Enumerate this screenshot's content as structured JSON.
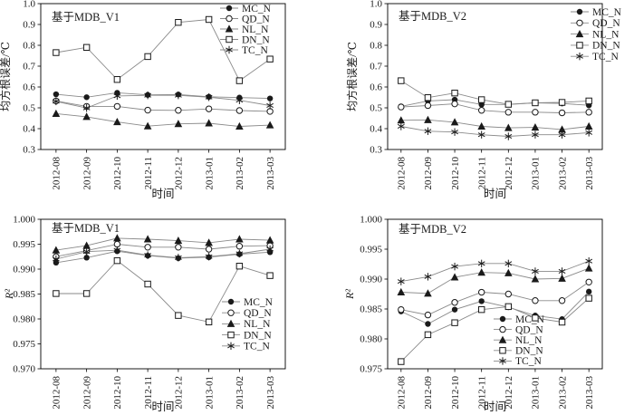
{
  "figure_title": "",
  "colors": {
    "line": "#8a8a8a",
    "marker": "#1a1a1a",
    "frame": "#000000",
    "text": "#1a1a1a",
    "background": "#ffffff"
  },
  "chart_data": [
    {
      "id": "rmse-mdb-v1",
      "type": "line",
      "title": "基于MDB_V1",
      "ylabel": "均方根误差/℃",
      "xlabel": "时间",
      "ylim": [
        0.3,
        1.0
      ],
      "ytick_labels": [
        "0.3",
        "0.4",
        "0.5",
        "0.6",
        "0.7",
        "0.8",
        "0.9",
        "1.0"
      ],
      "grid": false,
      "legend_position": "upper-right",
      "categories": [
        "2012-08",
        "2012-09",
        "2012-10",
        "2012-11",
        "2012-12",
        "2013-01",
        "2013-02",
        "2013-03"
      ],
      "series": [
        {
          "name": "MC_N",
          "marker": "circle-filled",
          "values": [
            0.565,
            0.551,
            0.572,
            0.562,
            0.564,
            0.553,
            0.549,
            0.545
          ]
        },
        {
          "name": "QD_N",
          "marker": "circle-open",
          "values": [
            0.533,
            0.507,
            0.507,
            0.489,
            0.488,
            0.495,
            0.487,
            0.483
          ]
        },
        {
          "name": "NL_N",
          "marker": "triangle-filled",
          "values": [
            0.472,
            0.457,
            0.432,
            0.412,
            0.423,
            0.426,
            0.411,
            0.417
          ]
        },
        {
          "name": "DN_N",
          "marker": "square-open",
          "values": [
            0.765,
            0.79,
            0.636,
            0.746,
            0.91,
            0.924,
            0.63,
            0.734
          ]
        },
        {
          "name": "TC_N",
          "marker": "asterisk",
          "values": [
            0.531,
            0.499,
            0.557,
            0.56,
            0.56,
            0.551,
            0.536,
            0.511
          ]
        }
      ]
    },
    {
      "id": "rmse-mdb-v2",
      "type": "line",
      "title": "基于MDB_V2",
      "ylabel": "均方根误差/℃",
      "xlabel": "时间",
      "ylim": [
        0.3,
        1.0
      ],
      "ytick_labels": [
        "0.3",
        "0.4",
        "0.5",
        "0.6",
        "0.7",
        "0.8",
        "0.9",
        "1.0"
      ],
      "grid": false,
      "legend_position": "upper-right",
      "categories": [
        "2012-08",
        "2012-09",
        "2012-10",
        "2012-11",
        "2012-12",
        "2013-01",
        "2013-02",
        "2013-03"
      ],
      "series": [
        {
          "name": "MC_N",
          "marker": "circle-filled",
          "values": [
            0.507,
            0.533,
            0.539,
            0.516,
            0.516,
            0.524,
            0.521,
            0.512
          ]
        },
        {
          "name": "QD_N",
          "marker": "circle-open",
          "values": [
            0.504,
            0.511,
            0.519,
            0.488,
            0.479,
            0.479,
            0.476,
            0.479
          ]
        },
        {
          "name": "NL_N",
          "marker": "triangle-filled",
          "values": [
            0.44,
            0.442,
            0.431,
            0.411,
            0.404,
            0.406,
            0.396,
            0.411
          ]
        },
        {
          "name": "DN_N",
          "marker": "square-open",
          "values": [
            0.63,
            0.549,
            0.571,
            0.539,
            0.517,
            0.524,
            0.526,
            0.533
          ]
        },
        {
          "name": "TC_N",
          "marker": "asterisk",
          "values": [
            0.411,
            0.388,
            0.384,
            0.371,
            0.363,
            0.371,
            0.371,
            0.381
          ]
        }
      ]
    },
    {
      "id": "r2-mdb-v1",
      "type": "line",
      "title": "基于MDB_V1",
      "ylabel": "R²",
      "xlabel": "时间",
      "ylim": [
        0.97,
        1.0
      ],
      "ytick_labels": [
        "0.970",
        "0.975",
        "0.980",
        "0.985",
        "0.990",
        "0.995",
        "1.000"
      ],
      "grid": false,
      "legend_position": "lower-right",
      "categories": [
        "2012-08",
        "2012-09",
        "2012-10",
        "2012-11",
        "2012-12",
        "2013-01",
        "2013-02",
        "2013-03"
      ],
      "series": [
        {
          "name": "MC_N",
          "marker": "circle-filled",
          "values": [
            0.9913,
            0.9923,
            0.9936,
            0.9927,
            0.9922,
            0.9924,
            0.993,
            0.9934
          ]
        },
        {
          "name": "QD_N",
          "marker": "circle-open",
          "values": [
            0.9925,
            0.9937,
            0.995,
            0.9944,
            0.9944,
            0.994,
            0.9946,
            0.9947
          ]
        },
        {
          "name": "NL_N",
          "marker": "triangle-filled",
          "values": [
            0.9938,
            0.9947,
            0.9962,
            0.996,
            0.9957,
            0.9953,
            0.996,
            0.9958
          ]
        },
        {
          "name": "DN_N",
          "marker": "square-open",
          "values": [
            0.9851,
            0.9851,
            0.9917,
            0.987,
            0.9807,
            0.9794,
            0.9906,
            0.9887
          ]
        },
        {
          "name": "TC_N",
          "marker": "asterisk",
          "values": [
            0.992,
            0.9935,
            0.9938,
            0.9928,
            0.9923,
            0.9925,
            0.9931,
            0.994
          ]
        }
      ]
    },
    {
      "id": "r2-mdb-v2",
      "type": "line",
      "title": "基于MDB_V2",
      "ylabel": "R²",
      "xlabel": "时间",
      "ylim": [
        0.975,
        1.0
      ],
      "ytick_labels": [
        "0.975",
        "0.980",
        "0.985",
        "0.990",
        "0.995",
        "1.000"
      ],
      "grid": false,
      "legend_position": "lower-center",
      "categories": [
        "2012-08",
        "2012-09",
        "2012-10",
        "2012-11",
        "2012-12",
        "2013-01",
        "2013-02",
        "2013-03"
      ],
      "series": [
        {
          "name": "MC_N",
          "marker": "circle-filled",
          "values": [
            0.9846,
            0.9825,
            0.9849,
            0.9863,
            0.9853,
            0.9839,
            0.9833,
            0.9879
          ]
        },
        {
          "name": "QD_N",
          "marker": "circle-open",
          "values": [
            0.9849,
            0.984,
            0.9861,
            0.9878,
            0.9875,
            0.9864,
            0.9864,
            0.9895
          ]
        },
        {
          "name": "NL_N",
          "marker": "triangle-filled",
          "values": [
            0.9878,
            0.9876,
            0.9903,
            0.9911,
            0.991,
            0.99,
            0.9901,
            0.9918
          ]
        },
        {
          "name": "DN_N",
          "marker": "square-open",
          "values": [
            0.9762,
            0.9807,
            0.9827,
            0.9849,
            0.9854,
            0.9835,
            0.9828,
            0.9868
          ]
        },
        {
          "name": "TC_N",
          "marker": "asterisk",
          "values": [
            0.9896,
            0.9904,
            0.9921,
            0.9926,
            0.9926,
            0.9913,
            0.9913,
            0.993
          ]
        }
      ]
    }
  ]
}
